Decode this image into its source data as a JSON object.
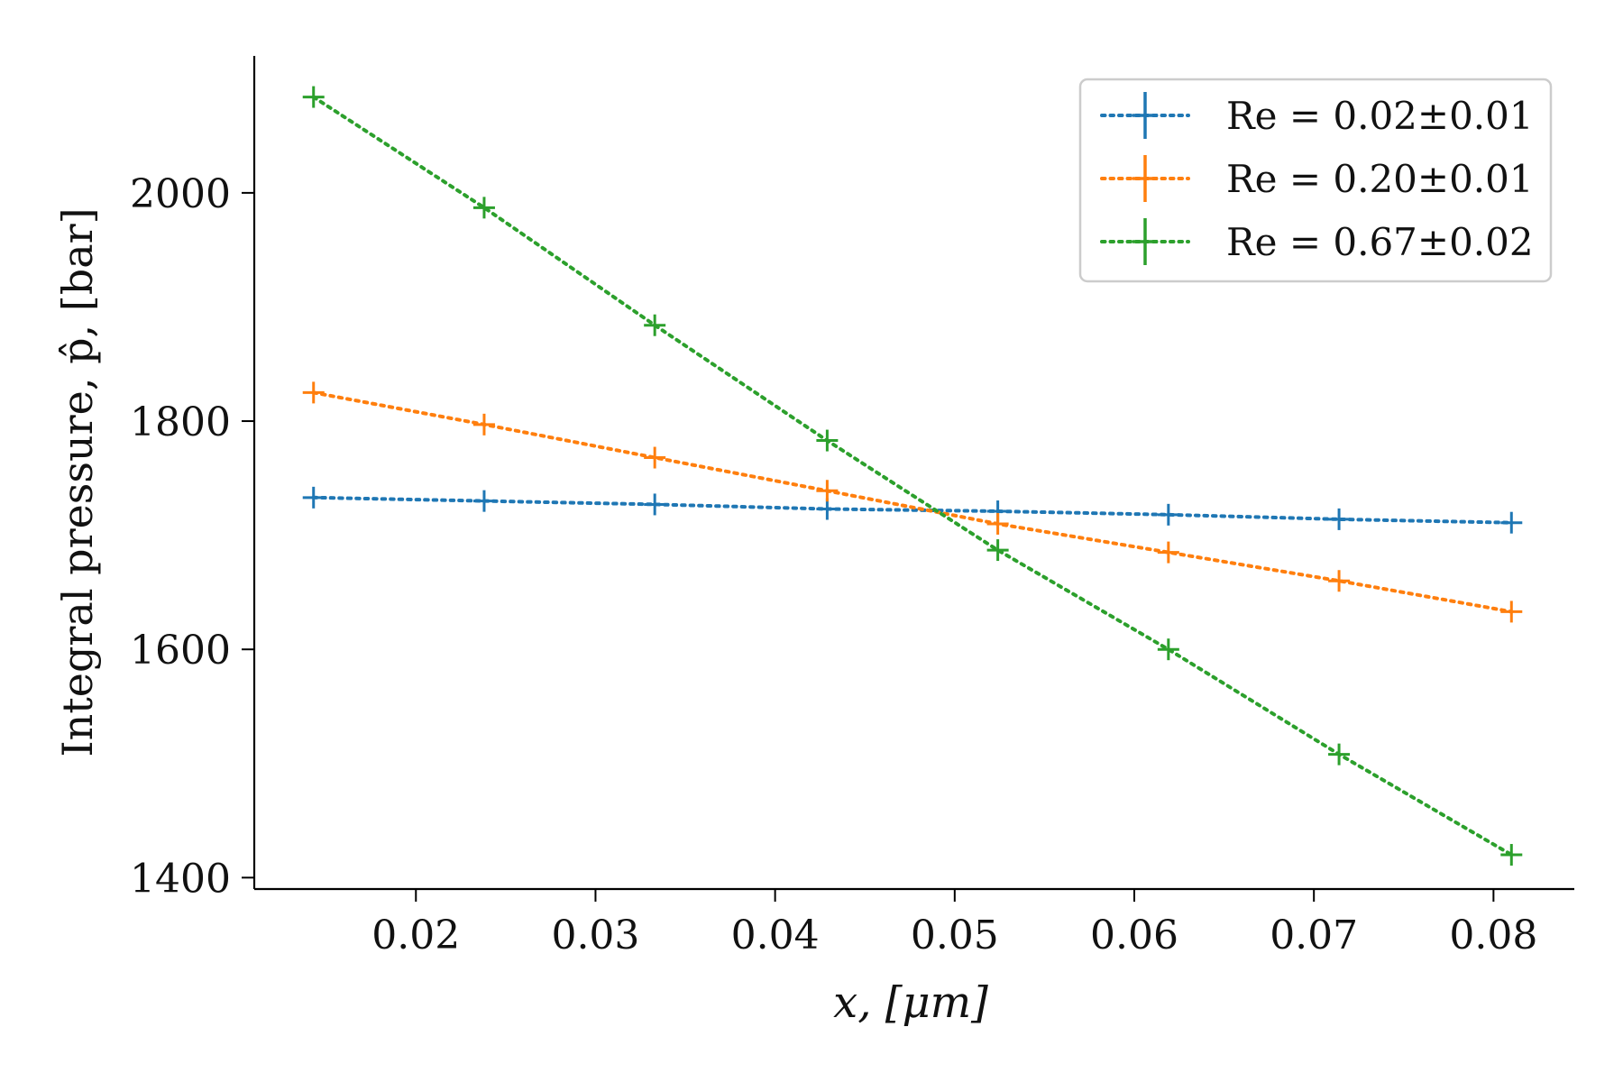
{
  "chart_data": {
    "type": "line",
    "title": "",
    "xlabel": "x, [μm]",
    "ylabel": "Integral pressure, p̂, [bar]",
    "xlim": [
      0.011,
      0.0845
    ],
    "ylim": [
      1390,
      2120
    ],
    "x_ticks": [
      "0.02",
      "0.03",
      "0.04",
      "0.05",
      "0.06",
      "0.07",
      "0.08"
    ],
    "y_ticks": [
      "1400",
      "1600",
      "1800",
      "2000"
    ],
    "grid": false,
    "legend_position": "top-right",
    "x": [
      0.0143,
      0.0238,
      0.0333,
      0.0429,
      0.0524,
      0.0619,
      0.0714,
      0.081
    ],
    "series": [
      {
        "name": "Re = 0.02±0.01",
        "color": "#1f77b4",
        "values": [
          1733,
          1730,
          1727,
          1723,
          1721,
          1718,
          1714,
          1711
        ]
      },
      {
        "name": "Re = 0.20±0.01",
        "color": "#ff7f0e",
        "values": [
          1825,
          1797,
          1768,
          1739,
          1710,
          1685,
          1660,
          1633
        ]
      },
      {
        "name": "Re = 0.67±0.02",
        "color": "#2ca02c",
        "values": [
          2084,
          1987,
          1884,
          1783,
          1687,
          1600,
          1508,
          1420
        ]
      }
    ]
  }
}
